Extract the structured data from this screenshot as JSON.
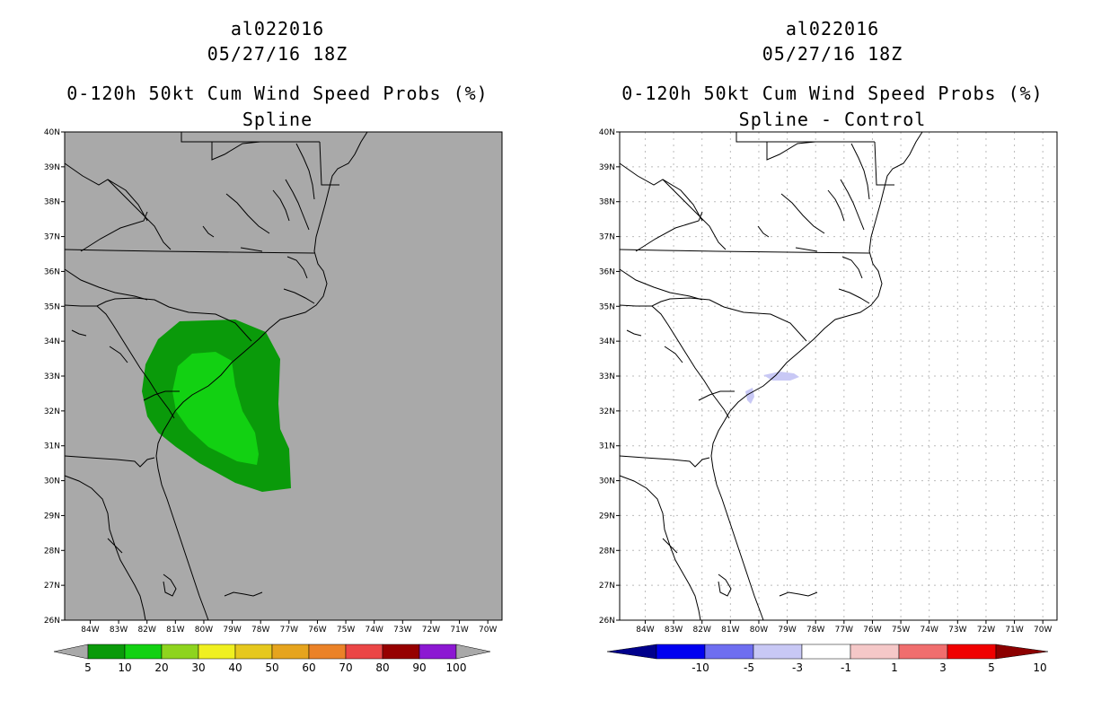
{
  "left_panel": {
    "title_storm": "al022016",
    "title_time": "05/27/16 18Z",
    "title_product": "0-120h 50kt Cum Wind Speed Probs (%)",
    "subtitle": "Spline",
    "background": "#a9a9a9",
    "colorbar_labels": [
      "5",
      "10",
      "20",
      "30",
      "40",
      "50",
      "60",
      "70",
      "80",
      "90",
      "100"
    ],
    "colorbar_colors": [
      "#0a9a0a",
      "#12d112",
      "#8ed41e",
      "#f0f020",
      "#e6c81e",
      "#e6a41e",
      "#eb8228",
      "#eb4646",
      "#960000",
      "#8c18d2"
    ],
    "probability_shading": [
      {
        "level": "5-10",
        "color": "#0a9a0a"
      },
      {
        "level": "10-20",
        "color": "#12d112"
      }
    ]
  },
  "right_panel": {
    "title_storm": "al022016",
    "title_time": "05/27/16 18Z",
    "title_product": "0-120h 50kt Cum Wind Speed Probs (%)",
    "subtitle": "Spline - Control",
    "background": "#ffffff",
    "colorbar_labels": [
      "-10",
      "-5",
      "-3",
      "-1",
      "1",
      "3",
      "5",
      "10"
    ],
    "colorbar_colors": [
      "#00008c",
      "#0000f0",
      "#6e6ef0",
      "#c8c8f5",
      "#ffffff",
      "#f5c8c8",
      "#f06e6e",
      "#f00000",
      "#8c0000"
    ],
    "difference_shading": [
      {
        "level": "-3 to -1",
        "color": "#c8c8f5"
      }
    ]
  },
  "map": {
    "lat_labels": [
      "40N",
      "39N",
      "38N",
      "37N",
      "36N",
      "35N",
      "34N",
      "33N",
      "32N",
      "31N",
      "30N",
      "29N",
      "28N",
      "27N",
      "26N"
    ],
    "lon_labels": [
      "84W",
      "83W",
      "82W",
      "81W",
      "80W",
      "79W",
      "78W",
      "77W",
      "76W",
      "75W",
      "74W",
      "73W",
      "72W",
      "71W",
      "70W"
    ]
  }
}
